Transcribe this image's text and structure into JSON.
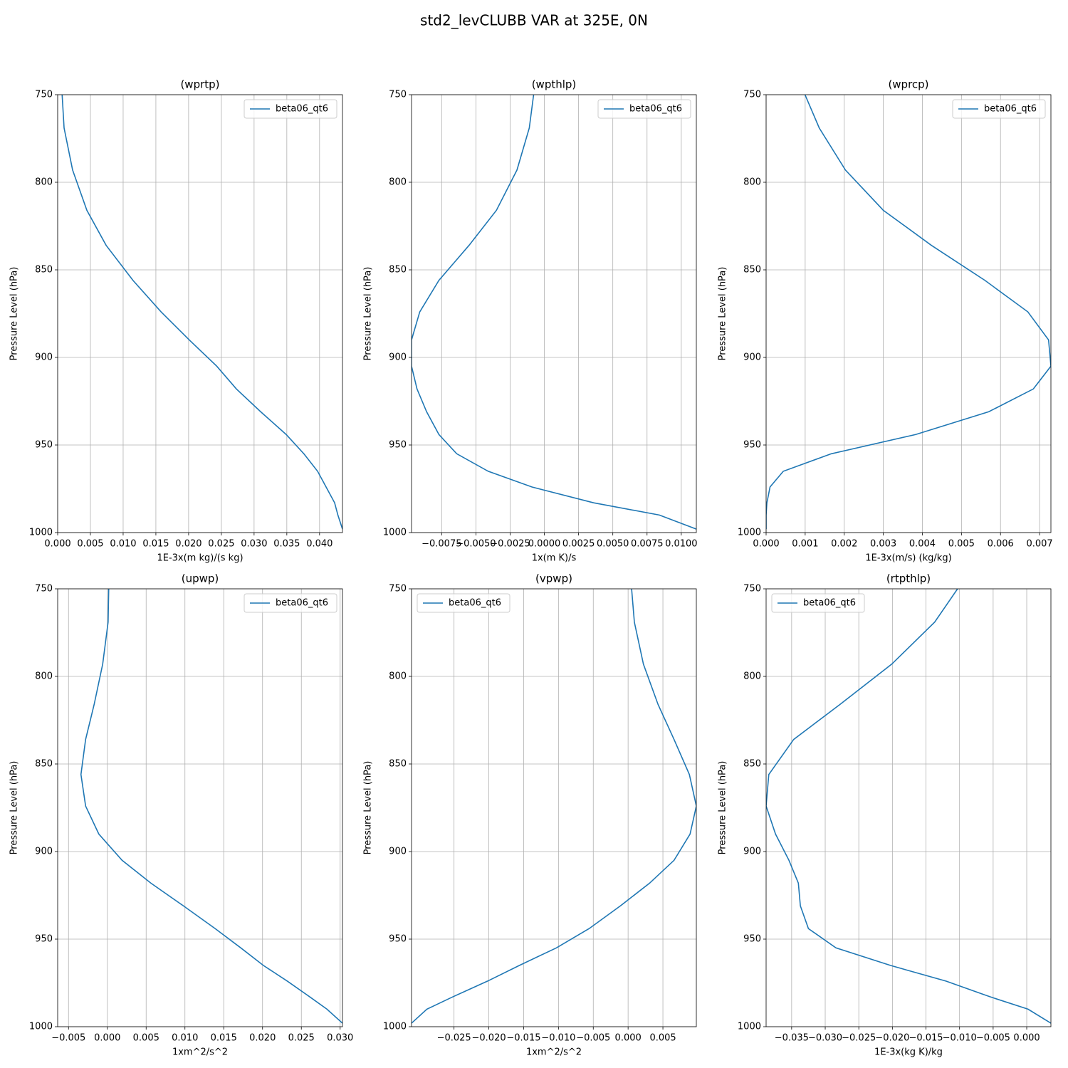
{
  "title": "std2_levCLUBB VAR at 325E, 0N",
  "chart_data": [
    {
      "type": "line",
      "title": "(wprtp)",
      "xlabel": "1E-3x(m kg)/(s kg)",
      "ylabel": "Pressure Level (hPa)",
      "y": [
        745,
        769,
        793,
        816,
        836,
        856,
        874,
        890,
        905,
        918,
        931,
        944,
        955,
        965,
        974,
        983,
        990,
        998
      ],
      "series": [
        {
          "name": "beta06_qt6",
          "color": "#1f77b4",
          "values": [
            0.0006,
            0.00098,
            0.00228,
            0.00446,
            0.0074,
            0.0115,
            0.0158,
            0.0201,
            0.0243,
            0.0273,
            0.031,
            0.0349,
            0.0376,
            0.0397,
            0.041,
            0.0423,
            0.0428,
            0.0435
          ]
        }
      ],
      "xlim": [
        0,
        0.0435
      ],
      "ylim": [
        1000,
        750
      ],
      "xticks": [
        {
          "value": 0,
          "label": "0.000"
        },
        0.005,
        {
          "value": 0.01,
          "label": "0.010"
        },
        0.015,
        {
          "value": 0.02,
          "label": "0.020"
        },
        0.025,
        {
          "value": 0.03,
          "label": "0.030"
        },
        0.035,
        {
          "value": 0.04,
          "label": "0.040"
        }
      ],
      "yticks": [
        750,
        800,
        850,
        900,
        950,
        1000
      ],
      "grid": true,
      "legend": "upper right"
    },
    {
      "type": "line",
      "title": "(wpthlp)",
      "xlabel": "1x(m K)/s",
      "ylabel": "Pressure Level (hPa)",
      "y": [
        745,
        769,
        793,
        816,
        836,
        856,
        874,
        890,
        905,
        918,
        931,
        944,
        955,
        965,
        974,
        983,
        990,
        998
      ],
      "series": [
        {
          "name": "beta06_qt6",
          "color": "#1f77b4",
          "values": [
            -0.0007,
            -0.0011,
            -0.002,
            -0.0035,
            -0.0055,
            -0.0077,
            -0.0091,
            -0.0097,
            -0.0097,
            -0.0093,
            -0.0086,
            -0.0077,
            -0.0064,
            -0.0041,
            -0.0009,
            0.0036,
            0.0084,
            0.0111
          ]
        }
      ],
      "xlim": [
        -0.0097,
        0.0111
      ],
      "ylim": [
        1000,
        750
      ],
      "xticks": [
        {
          "value": -0.0075,
          "label": "−0.0075"
        },
        {
          "value": -0.005,
          "label": "−0.0050"
        },
        {
          "value": -0.0025,
          "label": "−0.0025"
        },
        {
          "value": 0,
          "label": "0.0000"
        },
        0.0025,
        {
          "value": 0.005,
          "label": "0.0050"
        },
        0.0075,
        {
          "value": 0.01,
          "label": "0.0100"
        }
      ],
      "yticks": [
        750,
        800,
        850,
        900,
        950,
        1000
      ],
      "grid": true,
      "legend": "upper right"
    },
    {
      "type": "line",
      "title": "(wprcp)",
      "xlabel": "1E-3x(m/s) (kg/kg)",
      "ylabel": "Pressure Level (hPa)",
      "y": [
        745,
        769,
        793,
        816,
        836,
        856,
        874,
        890,
        905,
        918,
        931,
        944,
        955,
        965,
        974,
        983,
        990,
        998
      ],
      "series": [
        {
          "name": "beta06_qt6",
          "color": "#1f77b4",
          "values": [
            0.0009,
            0.00136,
            0.00203,
            0.003,
            0.00423,
            0.0056,
            0.0067,
            0.00723,
            0.00729,
            0.00684,
            0.0057,
            0.00383,
            0.00167,
            0.00044,
            0.0001,
            2e-05,
            0,
            0
          ]
        }
      ],
      "xlim": [
        0,
        0.00729
      ],
      "ylim": [
        1000,
        750
      ],
      "xticks": [
        {
          "value": 0,
          "label": "0.000"
        },
        0.001,
        0.002,
        0.003,
        0.004,
        0.005,
        0.006,
        0.007
      ],
      "yticks": [
        750,
        800,
        850,
        900,
        950,
        1000
      ],
      "grid": true,
      "legend": "upper right"
    },
    {
      "type": "line",
      "title": "(upwp)",
      "xlabel": "1xm^2/s^2",
      "ylabel": "Pressure Level (hPa)",
      "y": [
        745,
        769,
        793,
        816,
        836,
        856,
        874,
        890,
        905,
        918,
        931,
        944,
        955,
        965,
        974,
        983,
        990,
        998
      ],
      "series": [
        {
          "name": "beta06_qt6",
          "color": "#1f77b4",
          "values": [
            0.0002,
            0.0001,
            -0.0006,
            -0.0017,
            -0.0028,
            -0.0034,
            -0.0028,
            -0.0011,
            0.0019,
            0.0056,
            0.0098,
            0.0139,
            0.0172,
            0.0201,
            0.0232,
            0.0261,
            0.0283,
            0.0303
          ]
        }
      ],
      "xlim": [
        -0.0064,
        0.0303
      ],
      "ylim": [
        1000,
        750
      ],
      "xticks": [
        {
          "value": -0.005,
          "label": "−0.005"
        },
        {
          "value": 0,
          "label": "0.000"
        },
        0.005,
        {
          "value": 0.01,
          "label": "0.010"
        },
        0.015,
        {
          "value": 0.02,
          "label": "0.020"
        },
        0.025,
        {
          "value": 0.03,
          "label": "0.030"
        }
      ],
      "yticks": [
        750,
        800,
        850,
        900,
        950,
        1000
      ],
      "grid": true,
      "legend": "upper right"
    },
    {
      "type": "line",
      "title": "(vpwp)",
      "xlabel": "1xm^2/s^2",
      "ylabel": "Pressure Level (hPa)",
      "y": [
        745,
        769,
        793,
        816,
        836,
        856,
        874,
        890,
        905,
        918,
        931,
        944,
        955,
        965,
        974,
        983,
        990,
        998
      ],
      "series": [
        {
          "name": "beta06_qt6",
          "color": "#1f77b4",
          "values": [
            0.0004,
            0.0009,
            0.0022,
            0.0043,
            0.0066,
            0.0088,
            0.0098,
            0.0089,
            0.0066,
            0.0031,
            -0.0011,
            -0.0056,
            -0.0103,
            -0.0156,
            -0.0202,
            -0.0252,
            -0.0289,
            -0.0311
          ]
        }
      ],
      "xlim": [
        -0.0311,
        0.0098
      ],
      "ylim": [
        1000,
        750
      ],
      "xticks": [
        {
          "value": -0.025,
          "label": "−0.025"
        },
        {
          "value": -0.02,
          "label": "−0.020"
        },
        {
          "value": -0.015,
          "label": "−0.015"
        },
        {
          "value": -0.01,
          "label": "−0.010"
        },
        {
          "value": -0.005,
          "label": "−0.005"
        },
        {
          "value": 0,
          "label": "0.000"
        },
        0.005
      ],
      "yticks": [
        750,
        800,
        850,
        900,
        950,
        1000
      ],
      "grid": true,
      "legend": "upper left"
    },
    {
      "type": "line",
      "title": "(rtpthlp)",
      "xlabel": "1E-3x(kg K)/kg",
      "ylabel": "Pressure Level (hPa)",
      "y": [
        745,
        769,
        793,
        816,
        836,
        856,
        874,
        890,
        905,
        918,
        931,
        944,
        955,
        965,
        974,
        983,
        990,
        998
      ],
      "series": [
        {
          "name": "beta06_qt6",
          "color": "#1f77b4",
          "values": [
            -0.0094,
            -0.0137,
            -0.0201,
            -0.0278,
            -0.0347,
            -0.0384,
            -0.0388,
            -0.0374,
            -0.0354,
            -0.034,
            -0.0337,
            -0.0325,
            -0.0284,
            -0.0203,
            -0.012,
            -0.0054,
            0.0002,
            0.0036
          ]
        }
      ],
      "xlim": [
        -0.0388,
        0.0036
      ],
      "ylim": [
        1000,
        750
      ],
      "xticks": [
        {
          "value": -0.035,
          "label": "−0.035"
        },
        {
          "value": -0.03,
          "label": "−0.030"
        },
        {
          "value": -0.025,
          "label": "−0.025"
        },
        {
          "value": -0.02,
          "label": "−0.020"
        },
        {
          "value": -0.015,
          "label": "−0.015"
        },
        {
          "value": -0.01,
          "label": "−0.010"
        },
        {
          "value": -0.005,
          "label": "−0.005"
        },
        {
          "value": 0,
          "label": "0.000"
        }
      ],
      "yticks": [
        750,
        800,
        850,
        900,
        950,
        1000
      ],
      "grid": true,
      "legend": "upper left"
    }
  ]
}
